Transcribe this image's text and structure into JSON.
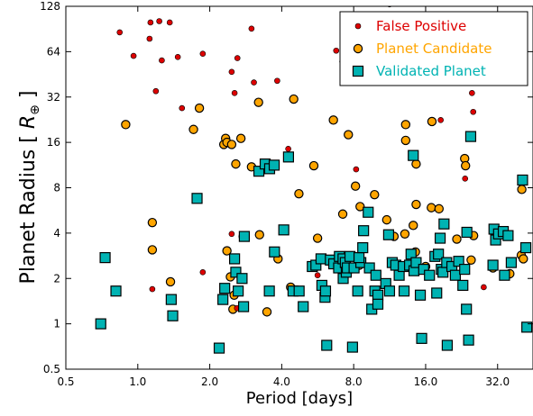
{
  "chart_data": {
    "type": "scatter",
    "title": "",
    "xlabel": "Period [days]",
    "ylabel": "Planet Radius [R_⊕]",
    "x_scale": "log2",
    "y_scale": "log2",
    "xlim": [
      0.5,
      45
    ],
    "ylim": [
      0.5,
      128
    ],
    "xticks": [
      "0.5",
      "1.0",
      "2.0",
      "4.0",
      "8.0",
      "16.0",
      "32.0"
    ],
    "yticks": [
      "0.5",
      "1",
      "2",
      "4",
      "8",
      "16",
      "32",
      "64",
      "128"
    ],
    "legend_position": "top-right",
    "series": [
      {
        "name": "False Positive",
        "color": "#dd0000",
        "marker": "small-circle",
        "points": [
          [
            0.84,
            86
          ],
          [
            0.96,
            60
          ],
          [
            1.13,
            100
          ],
          [
            1.23,
            102
          ],
          [
            1.36,
            100
          ],
          [
            1.12,
            78
          ],
          [
            1.19,
            35
          ],
          [
            1.26,
            56
          ],
          [
            1.47,
            59
          ],
          [
            1.53,
            27
          ],
          [
            1.87,
            62
          ],
          [
            2.47,
            47
          ],
          [
            2.54,
            34
          ],
          [
            2.61,
            58
          ],
          [
            2.99,
            91
          ],
          [
            3.06,
            40
          ],
          [
            3.83,
            41
          ],
          [
            4.26,
            14.5
          ],
          [
            6.76,
            65
          ],
          [
            7.17,
            55
          ],
          [
            7.27,
            40
          ],
          [
            8.19,
            10.6
          ],
          [
            11.3,
            132
          ],
          [
            18.5,
            22.5
          ],
          [
            24.3,
            43
          ],
          [
            25.0,
            34
          ],
          [
            25.3,
            25.5
          ],
          [
            23.4,
            9.2
          ],
          [
            1.15,
            1.7
          ],
          [
            1.38,
            1.5
          ],
          [
            1.87,
            2.2
          ],
          [
            2.47,
            3.95
          ],
          [
            2.6,
            1.27
          ],
          [
            5.65,
            2.1
          ],
          [
            7.4,
            2.5
          ],
          [
            28.0,
            1.75
          ]
        ]
      },
      {
        "name": "Planet Candidate",
        "color": "#ffa500",
        "marker": "circle",
        "points": [
          [
            0.89,
            21
          ],
          [
            1.71,
            19.5
          ],
          [
            1.81,
            27
          ],
          [
            2.29,
            15.5
          ],
          [
            2.33,
            17
          ],
          [
            2.36,
            16
          ],
          [
            2.47,
            15.5
          ],
          [
            2.7,
            17
          ],
          [
            3.2,
            29.5
          ],
          [
            4.49,
            31
          ],
          [
            2.57,
            11.5
          ],
          [
            2.99,
            11
          ],
          [
            5.45,
            11.2
          ],
          [
            6.58,
            22.5
          ],
          [
            7.6,
            18
          ],
          [
            8.14,
            8.2
          ],
          [
            9.78,
            7.2
          ],
          [
            13.2,
            21
          ],
          [
            13.2,
            16.5
          ],
          [
            14.6,
            11.5
          ],
          [
            17.0,
            22
          ],
          [
            23.3,
            12.5
          ],
          [
            23.5,
            11.2
          ],
          [
            14.6,
            6.2
          ],
          [
            16.9,
            5.9
          ],
          [
            18.2,
            5.8
          ],
          [
            14.2,
            4.5
          ],
          [
            11.0,
            4.9
          ],
          [
            8.51,
            6.0
          ],
          [
            4.72,
            7.3
          ],
          [
            1.15,
            4.7
          ],
          [
            1.15,
            3.1
          ],
          [
            1.37,
            1.9
          ],
          [
            2.36,
            3.05
          ],
          [
            2.44,
            2.05
          ],
          [
            2.53,
            1.55
          ],
          [
            2.5,
            1.25
          ],
          [
            2.76,
            3.8
          ],
          [
            3.23,
            3.9
          ],
          [
            3.86,
            2.7
          ],
          [
            3.47,
            1.2
          ],
          [
            4.36,
            1.75
          ],
          [
            5.65,
            3.7
          ],
          [
            7.2,
            5.35
          ],
          [
            7.51,
            2.25
          ],
          [
            8.45,
            2.45
          ],
          [
            11.8,
            3.8
          ],
          [
            13.1,
            3.95
          ],
          [
            14.5,
            3.0
          ],
          [
            16.0,
            2.4
          ],
          [
            21.6,
            3.65
          ],
          [
            24.8,
            2.65
          ],
          [
            25.4,
            3.85
          ],
          [
            30.6,
            2.35
          ],
          [
            36.0,
            2.15
          ],
          [
            40.2,
            2.85
          ],
          [
            40.4,
            7.8
          ],
          [
            41.0,
            2.7
          ]
        ]
      },
      {
        "name": "Validated Planet",
        "color": "#00b3b3",
        "marker": "square",
        "points": [
          [
            0.7,
            1.0
          ],
          [
            0.73,
            2.75
          ],
          [
            0.81,
            1.65
          ],
          [
            1.38,
            1.45
          ],
          [
            1.4,
            1.13
          ],
          [
            1.77,
            6.8
          ],
          [
            2.19,
            0.69
          ],
          [
            2.27,
            1.45
          ],
          [
            2.31,
            1.72
          ],
          [
            2.54,
            2.7
          ],
          [
            2.57,
            2.2
          ],
          [
            2.63,
            1.65
          ],
          [
            2.73,
            2.0
          ],
          [
            2.77,
            1.3
          ],
          [
            2.79,
            3.8
          ],
          [
            3.21,
            10.3
          ],
          [
            3.41,
            11.5
          ],
          [
            3.56,
            10.7
          ],
          [
            3.72,
            11.3
          ],
          [
            3.73,
            3.0
          ],
          [
            3.55,
            1.65
          ],
          [
            4.08,
            4.2
          ],
          [
            4.46,
            1.65
          ],
          [
            4.73,
            1.65
          ],
          [
            4.92,
            1.3
          ],
          [
            4.27,
            12.8
          ],
          [
            5.37,
            2.4
          ],
          [
            5.56,
            2.45
          ],
          [
            5.84,
            2.7
          ],
          [
            5.89,
            1.8
          ],
          [
            6.07,
            1.5
          ],
          [
            6.1,
            1.65
          ],
          [
            6.17,
            0.72
          ],
          [
            6.39,
            2.65
          ],
          [
            6.6,
            2.5
          ],
          [
            6.92,
            2.35
          ],
          [
            6.97,
            2.8
          ],
          [
            7.22,
            2.7
          ],
          [
            7.23,
            2.0
          ],
          [
            7.38,
            2.55
          ],
          [
            7.45,
            2.2
          ],
          [
            7.52,
            2.35
          ],
          [
            7.72,
            2.8
          ],
          [
            7.91,
            0.7
          ],
          [
            8.03,
            2.35
          ],
          [
            8.32,
            1.65
          ],
          [
            8.57,
            2.55
          ],
          [
            8.42,
            2.75
          ],
          [
            8.73,
            3.2
          ],
          [
            8.8,
            4.15
          ],
          [
            9.2,
            5.5
          ],
          [
            9.31,
            2.35
          ],
          [
            9.52,
            1.25
          ],
          [
            9.81,
            1.65
          ],
          [
            9.91,
            2.1
          ],
          [
            10.1,
            1.55
          ],
          [
            10.1,
            1.35
          ],
          [
            10.9,
            1.85
          ],
          [
            11.2,
            3.9
          ],
          [
            11.3,
            1.65
          ],
          [
            11.6,
            2.55
          ],
          [
            12.0,
            2.45
          ],
          [
            12.4,
            2.1
          ],
          [
            12.9,
            2.4
          ],
          [
            13.0,
            1.65
          ],
          [
            13.7,
            2.45
          ],
          [
            13.9,
            2.9
          ],
          [
            14.3,
            2.25
          ],
          [
            14.6,
            2.55
          ],
          [
            14.2,
            13.1
          ],
          [
            15.2,
            1.55
          ],
          [
            15.4,
            0.8
          ],
          [
            15.7,
            2.3
          ],
          [
            16.6,
            2.1
          ],
          [
            17.5,
            2.8
          ],
          [
            17.8,
            1.6
          ],
          [
            18.1,
            2.9
          ],
          [
            18.4,
            3.7
          ],
          [
            18.6,
            2.3
          ],
          [
            18.9,
            2.2
          ],
          [
            19.1,
            4.6
          ],
          [
            19.6,
            2.55
          ],
          [
            19.7,
            0.72
          ],
          [
            20.6,
            2.4
          ],
          [
            21.3,
            2.1
          ],
          [
            22.0,
            2.6
          ],
          [
            22.9,
            1.8
          ],
          [
            23.7,
            1.25
          ],
          [
            23.3,
            2.3
          ],
          [
            24.2,
            0.78
          ],
          [
            24.7,
            17.5
          ],
          [
            23.8,
            4.05
          ],
          [
            30.6,
            2.45
          ],
          [
            30.9,
            4.25
          ],
          [
            31.4,
            3.6
          ],
          [
            32.3,
            3.95
          ],
          [
            33.8,
            4.1
          ],
          [
            34.2,
            2.1
          ],
          [
            35.4,
            3.85
          ],
          [
            36.5,
            2.55
          ],
          [
            40.7,
            9.0
          ],
          [
            42.0,
            3.2
          ],
          [
            42.4,
            0.95
          ]
        ]
      }
    ]
  }
}
